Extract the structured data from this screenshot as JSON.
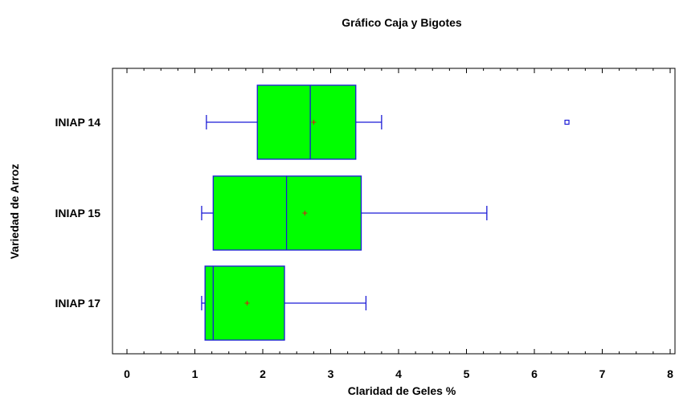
{
  "chart_data": {
    "type": "boxplot",
    "orientation": "horizontal",
    "title": "Gráfico Caja y Bigotes",
    "xlabel": "Claridad de Geles %",
    "ylabel": "Variedad de Arroz",
    "xlim": [
      0,
      8
    ],
    "x_ticks": [
      "0",
      "1",
      "2",
      "3",
      "4",
      "5",
      "6",
      "7",
      "8"
    ],
    "grid": false,
    "box_fill_color": "#00ff00",
    "box_edge_color": "#1b1bd6",
    "mean_marker_color": "#e0101a",
    "categories": [
      "INIAP 14",
      "INIAP 15",
      "INIAP 17"
    ],
    "boxes": [
      {
        "category": "INIAP 14",
        "whisker_low": 1.17,
        "q1": 1.92,
        "median": 2.7,
        "q3": 3.37,
        "whisker_high": 3.75,
        "mean": 2.75,
        "outliers": [
          6.48
        ]
      },
      {
        "category": "INIAP 15",
        "whisker_low": 1.1,
        "q1": 1.27,
        "median": 2.35,
        "q3": 3.45,
        "whisker_high": 5.3,
        "mean": 2.62,
        "outliers": []
      },
      {
        "category": "INIAP 17",
        "whisker_low": 1.1,
        "q1": 1.15,
        "median": 1.27,
        "q3": 2.32,
        "whisker_high": 3.52,
        "mean": 1.77,
        "outliers": []
      }
    ]
  }
}
